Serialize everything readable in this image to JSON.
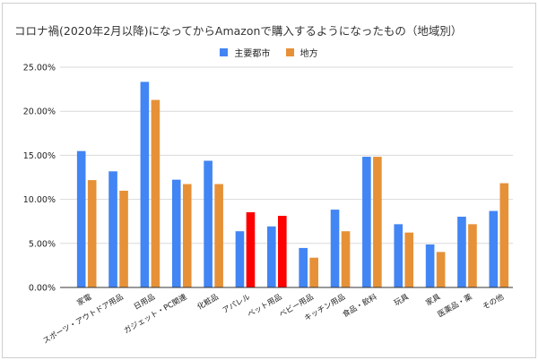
{
  "chart_data": {
    "type": "bar",
    "title": "コロナ禍(2020年2月以降)になってからAmazonで購入するようになったもの（地域別）",
    "xlabel": "",
    "ylabel": "",
    "ylim": [
      0,
      25
    ],
    "yticks": [
      "0.00%",
      "5.00%",
      "10.00%",
      "15.00%",
      "20.00%",
      "25.00%"
    ],
    "grid": true,
    "legend_position": "top",
    "categories": [
      "家電",
      "スポーツ・アウトドア用品",
      "日用品",
      "ガジェット・PC関連",
      "化粧品",
      "アパレル",
      "ペット用品",
      "ベビー用品",
      "キッチン用品",
      "食品・飲料",
      "玩具",
      "家具",
      "医薬品・薬",
      "その他"
    ],
    "series": [
      {
        "name": "主要都市",
        "color": "#4285f4",
        "values": [
          15.45,
          13.15,
          23.3,
          12.2,
          14.35,
          6.35,
          6.9,
          4.45,
          8.8,
          14.8,
          7.15,
          4.85,
          8.0,
          8.65
        ]
      },
      {
        "name": "地方",
        "color": "#e69138",
        "values": [
          12.15,
          10.95,
          21.25,
          11.7,
          11.7,
          8.5,
          8.1,
          3.35,
          6.35,
          14.8,
          6.2,
          4.0,
          7.15,
          11.8
        ]
      }
    ],
    "highlight": {
      "series": 1,
      "categories": [
        "アパレル",
        "ペット用品"
      ],
      "color": "#ff0000"
    }
  }
}
